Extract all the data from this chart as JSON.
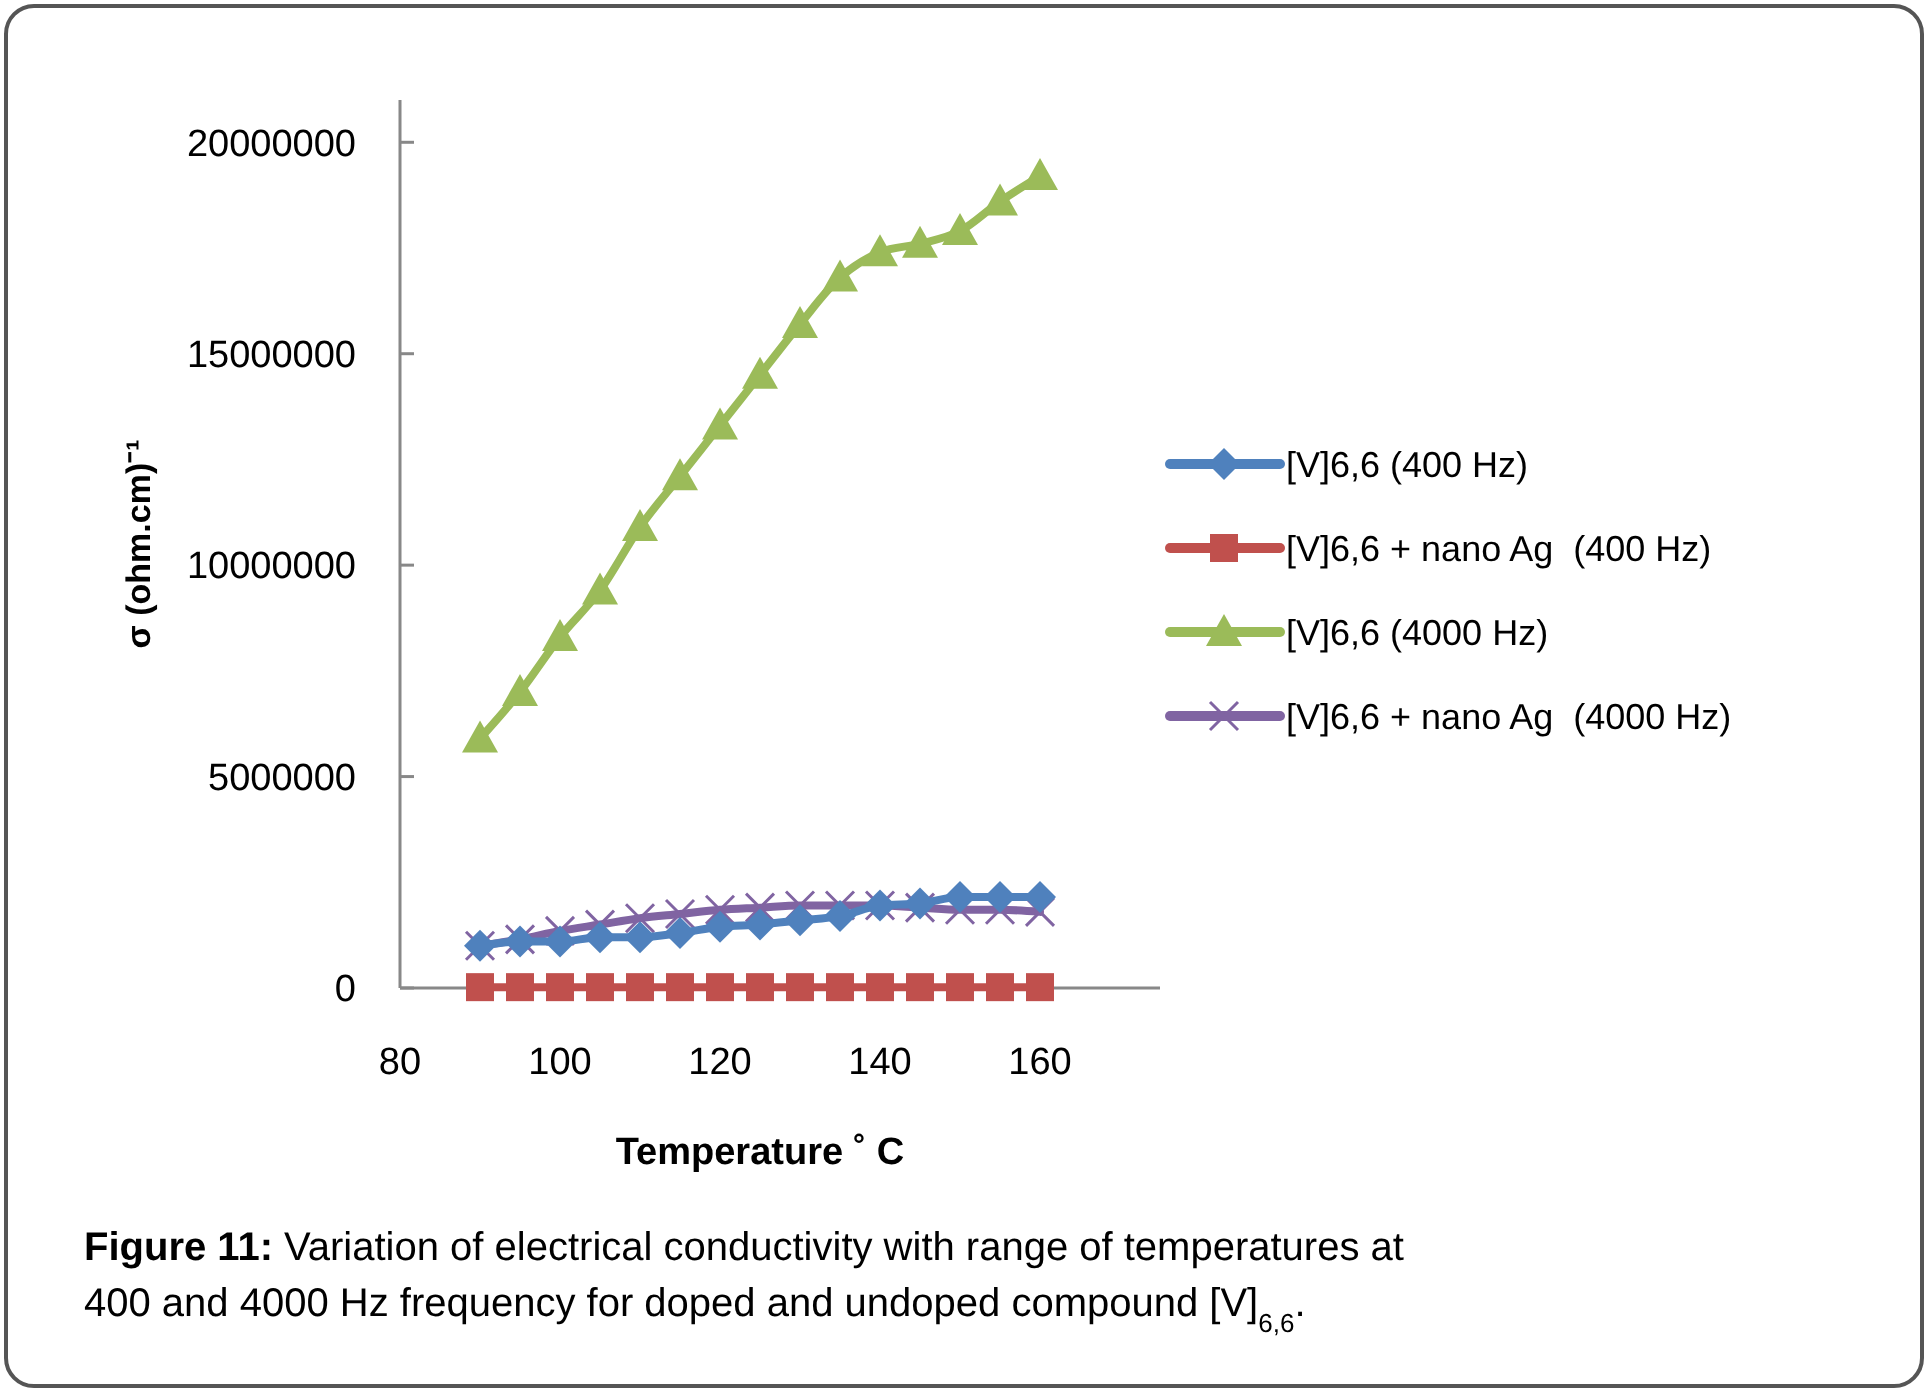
{
  "chart_data": {
    "type": "line",
    "xlabel": "Temperature ˚ C",
    "ylabel": "σ (ohm.cm)⁻¹",
    "x": [
      90,
      95,
      100,
      105,
      110,
      115,
      120,
      125,
      130,
      135,
      140,
      145,
      150,
      155,
      160
    ],
    "xlim": [
      80,
      175
    ],
    "xticks": [
      80,
      100,
      120,
      140,
      160
    ],
    "ylim": [
      0,
      21000000
    ],
    "yticks": [
      0,
      5000000,
      10000000,
      15000000,
      20000000
    ],
    "grid": false,
    "legend": "right",
    "series": [
      {
        "name": "[V]6,6 (400 Hz)",
        "color": "#4f81bd",
        "marker": "diamond",
        "values": [
          1000000,
          1100000,
          1100000,
          1200000,
          1200000,
          1300000,
          1450000,
          1500000,
          1600000,
          1700000,
          1950000,
          2000000,
          2150000,
          2150000,
          2150000
        ]
      },
      {
        "name": "[V]6,6 + nano Ag  (400 Hz)",
        "color": "#c0504d",
        "marker": "square",
        "values": [
          20000,
          20000,
          20000,
          20000,
          20000,
          20000,
          20000,
          20000,
          20000,
          20000,
          20000,
          20000,
          20000,
          20000,
          20000
        ]
      },
      {
        "name": "[V]6,6 (4000 Hz)",
        "color": "#9bbb59",
        "marker": "triangle",
        "values": [
          5900000,
          7000000,
          8300000,
          9400000,
          10900000,
          12100000,
          13300000,
          14500000,
          15700000,
          16800000,
          17400000,
          17600000,
          17900000,
          18600000,
          19200000
        ]
      },
      {
        "name": "[V]6,6 + nano Ag  (4000 Hz)",
        "color": "#8064a2",
        "marker": "cross",
        "values": [
          1000000,
          1150000,
          1350000,
          1500000,
          1650000,
          1750000,
          1850000,
          1900000,
          1950000,
          1950000,
          1950000,
          1900000,
          1850000,
          1850000,
          1800000
        ]
      }
    ],
    "annotations": [
      "**Figure 11:** Variation of electrical conductivity with range of temperatures at\n400 and 4000 Hz frequency for doped and undoped compound [V]$_{6,6}$."
    ]
  }
}
